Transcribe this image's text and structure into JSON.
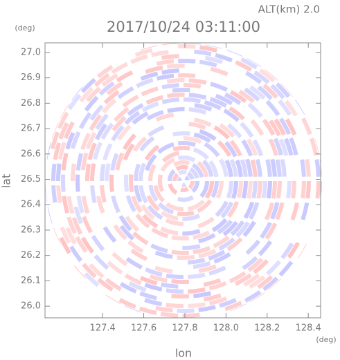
{
  "chart_data": {
    "type": "radar_ppi",
    "title": "2017/10/24 03:11:00",
    "subtitle": "ALT(km) 2.0",
    "x_label": "lon",
    "y_label": "lat",
    "x_unit": "(deg)",
    "y_unit": "(deg)",
    "xlim": [
      127.12,
      128.46
    ],
    "ylim": [
      25.954,
      27.038
    ],
    "xticks": [
      127.4,
      127.6,
      127.8,
      {
        "value": 128,
        "label": "128.0"
      },
      128.2,
      128.4
    ],
    "yticks": [
      {
        "value": 26,
        "label": "26.0"
      },
      26.1,
      26.2,
      26.3,
      26.4,
      26.5,
      26.6,
      26.7,
      26.8,
      26.9,
      {
        "value": 27,
        "label": "27.0"
      }
    ],
    "colors": [
      "#ffc4c4",
      "#c8c8ff"
    ]
  }
}
